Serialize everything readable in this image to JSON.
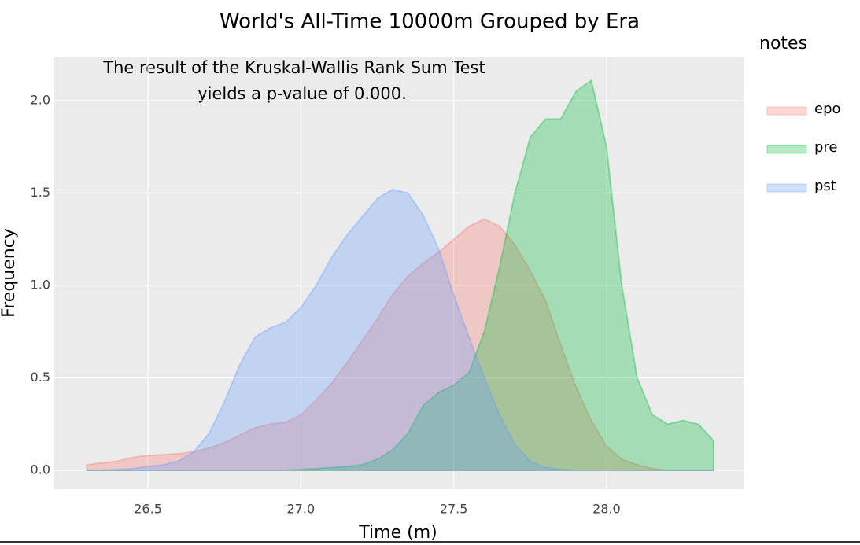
{
  "chart_data": {
    "type": "area",
    "title": "World's All-Time 10000m Grouped by Era",
    "annotation": [
      "The result of the Kruskal-Wallis Rank Sum Test",
      "yields a p-value of 0.000."
    ],
    "x_label": "Time (m)",
    "y_label": "Frequency",
    "legend_title": "notes",
    "legend_position": "right",
    "grid": true,
    "x": [
      26.3,
      26.35,
      26.4,
      26.45,
      26.5,
      26.55,
      26.6,
      26.65,
      26.7,
      26.75,
      26.8,
      26.85,
      26.9,
      26.95,
      27.0,
      27.05,
      27.1,
      27.15,
      27.2,
      27.25,
      27.3,
      27.35,
      27.4,
      27.45,
      27.5,
      27.55,
      27.6,
      27.65,
      27.7,
      27.75,
      27.8,
      27.85,
      27.9,
      27.95,
      28.0,
      28.05,
      28.1,
      28.15,
      28.2,
      28.25,
      28.3,
      28.35
    ],
    "series": [
      {
        "name": "epo",
        "color": "#f8766d",
        "values": [
          0.03,
          0.04,
          0.05,
          0.07,
          0.08,
          0.085,
          0.09,
          0.1,
          0.12,
          0.15,
          0.19,
          0.23,
          0.25,
          0.26,
          0.3,
          0.38,
          0.47,
          0.58,
          0.7,
          0.82,
          0.95,
          1.05,
          1.12,
          1.18,
          1.25,
          1.32,
          1.36,
          1.32,
          1.22,
          1.08,
          0.92,
          0.68,
          0.45,
          0.27,
          0.13,
          0.06,
          0.03,
          0.01,
          0,
          0,
          0,
          0
        ]
      },
      {
        "name": "pre",
        "color": "#00ba38",
        "values": [
          0,
          0,
          0,
          0,
          0,
          0,
          0,
          0,
          0,
          0,
          0,
          0,
          0,
          0,
          0.005,
          0.01,
          0.015,
          0.02,
          0.03,
          0.06,
          0.11,
          0.2,
          0.35,
          0.42,
          0.46,
          0.53,
          0.75,
          1.1,
          1.5,
          1.8,
          1.9,
          1.9,
          2.05,
          2.11,
          1.75,
          1.0,
          0.5,
          0.3,
          0.25,
          0.27,
          0.25,
          0.16
        ]
      },
      {
        "name": "pst",
        "color": "#619cff",
        "values": [
          0,
          0.002,
          0.005,
          0.01,
          0.02,
          0.03,
          0.05,
          0.1,
          0.2,
          0.37,
          0.57,
          0.72,
          0.77,
          0.8,
          0.88,
          1.0,
          1.15,
          1.27,
          1.37,
          1.47,
          1.52,
          1.5,
          1.38,
          1.2,
          0.95,
          0.72,
          0.5,
          0.3,
          0.14,
          0.05,
          0.015,
          0.005,
          0,
          0,
          0,
          0,
          0,
          0,
          0,
          0,
          0,
          0
        ]
      }
    ],
    "xlim": [
      26.191,
      28.448
    ],
    "ylim": [
      -0.102,
      2.238
    ],
    "xticks": [
      26.5,
      {
        "value": 27,
        "label": "27.0"
      },
      27.5,
      {
        "value": 28,
        "label": "28.0"
      }
    ],
    "yticks": [
      {
        "value": 0,
        "label": "0.0"
      },
      0.5,
      {
        "value": 1,
        "label": "1.0"
      },
      1.5,
      {
        "value": 2,
        "label": "2.0"
      }
    ]
  }
}
